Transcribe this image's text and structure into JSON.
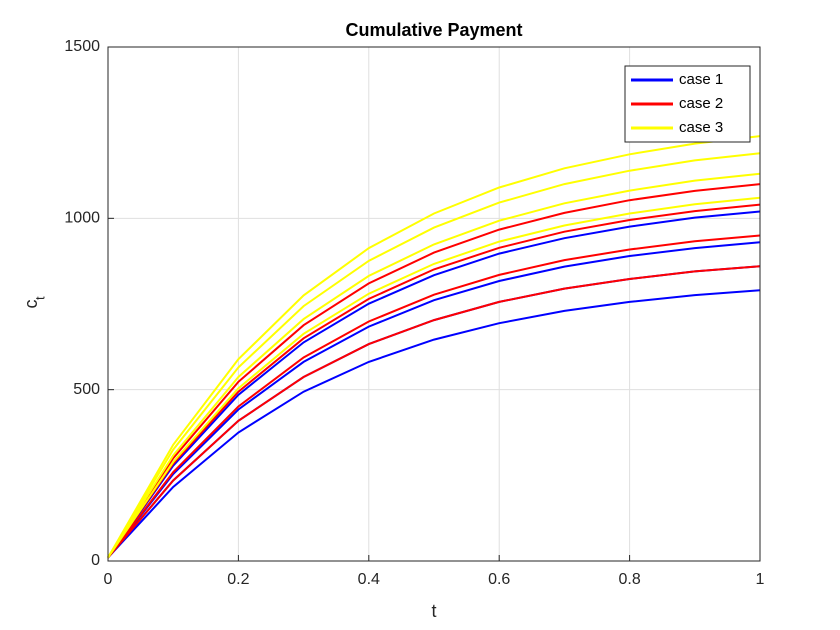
{
  "chart_data": {
    "type": "line",
    "title": "Cumulative Payment",
    "xlabel": "t",
    "ylabel": "c",
    "ylabel_subscript": "t",
    "x": [
      0,
      0.1,
      0.2,
      0.3,
      0.4,
      0.5,
      0.6,
      0.7,
      0.8,
      0.9,
      1
    ],
    "series": [
      {
        "name": "case 1",
        "color": "#0000ff",
        "values": [
          [
            10,
            216,
            375,
            494,
            581,
            646,
            694,
            730,
            756,
            776,
            790
          ],
          [
            10,
            235,
            409,
            537,
            633,
            703,
            756,
            795,
            823,
            845,
            860
          ],
          [
            10,
            254,
            442,
            581,
            684,
            761,
            817,
            859,
            890,
            913,
            930
          ],
          [
            10,
            278,
            485,
            638,
            751,
            834,
            897,
            942,
            976,
            1002,
            1020
          ]
        ]
      },
      {
        "name": "case 2",
        "color": "#ff0000",
        "values": [
          [
            10,
            235,
            409,
            537,
            633,
            703,
            756,
            795,
            823,
            845,
            860
          ],
          [
            10,
            259,
            451,
            594,
            699,
            777,
            835,
            878,
            909,
            933,
            950
          ],
          [
            10,
            284,
            494,
            650,
            765,
            851,
            914,
            961,
            995,
            1021,
            1040
          ],
          [
            10,
            300,
            523,
            688,
            810,
            900,
            967,
            1016,
            1053,
            1080,
            1100
          ]
        ]
      },
      {
        "name": "case 3",
        "color": "#ffff00",
        "values": [
          [
            10,
            289,
            504,
            663,
            780,
            867,
            932,
            979,
            1014,
            1041,
            1060
          ],
          [
            10,
            308,
            537,
            706,
            832,
            924,
            993,
            1044,
            1081,
            1110,
            1130
          ],
          [
            10,
            325,
            565,
            744,
            876,
            973,
            1046,
            1100,
            1139,
            1169,
            1190
          ],
          [
            10,
            339,
            589,
            775,
            913,
            1014,
            1090,
            1146,
            1187,
            1218,
            1240
          ]
        ]
      }
    ],
    "xlim": [
      0,
      1
    ],
    "xticks": [
      0,
      0.2,
      0.4,
      0.6,
      0.8,
      1
    ],
    "ylim": [
      0,
      1500
    ],
    "yticks": [
      0,
      500,
      1000,
      1500
    ],
    "grid": true,
    "legend": "upper right"
  }
}
